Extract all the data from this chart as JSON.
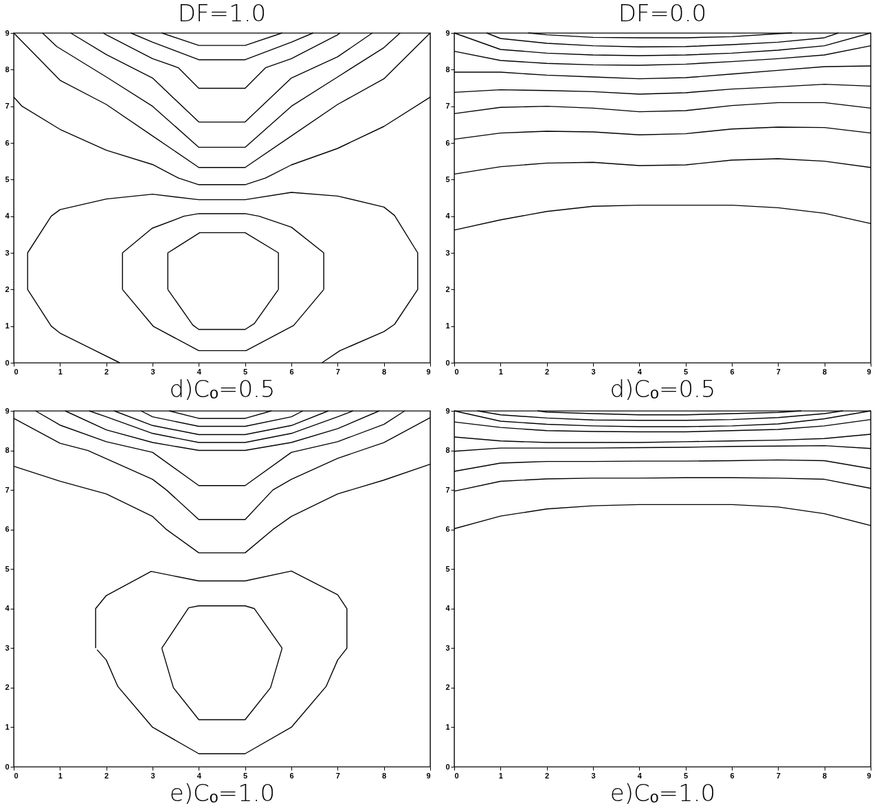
{
  "chart_data": [
    {
      "type": "line",
      "title": "DF=1.0",
      "xlabel": "d)Cₒ=0.5",
      "xlim": [
        0,
        9
      ],
      "ylim": [
        0,
        9
      ],
      "xticks": [
        0,
        1,
        2,
        3,
        4,
        5,
        6,
        7,
        8,
        9
      ],
      "yticks": [
        0,
        1,
        2,
        3,
        4,
        5,
        6,
        7,
        8,
        9
      ],
      "series": [
        {
          "color": "#000000",
          "x": [
            3.2,
            4,
            5,
            5.8
          ],
          "values": [
            9,
            8.66,
            8.66,
            9
          ]
        },
        {
          "color": "#000000",
          "x": [
            2.53,
            3,
            4,
            5,
            6,
            6.47
          ],
          "values": [
            9,
            8.75,
            8.27,
            8.27,
            8.75,
            9
          ]
        },
        {
          "color": "#000000",
          "x": [
            1.93,
            2,
            3,
            3.56,
            4,
            5,
            5.44,
            6,
            7,
            7.05
          ],
          "values": [
            9,
            8.95,
            8.3,
            8.05,
            7.49,
            7.49,
            8.05,
            8.3,
            8.95,
            9
          ]
        },
        {
          "color": "#000000",
          "x": [
            1.23,
            2,
            3,
            4,
            5,
            6,
            7,
            7.75
          ],
          "values": [
            9,
            8.41,
            7.77,
            6.57,
            6.57,
            7.77,
            8.35,
            9
          ]
        },
        {
          "color": "#000000",
          "x": [
            0.62,
            0.93,
            2,
            3,
            4,
            5,
            6,
            7,
            8,
            8.35
          ],
          "values": [
            9,
            8.63,
            7.8,
            7.0,
            5.88,
            5.88,
            7.0,
            7.8,
            8.6,
            9
          ]
        },
        {
          "color": "#000000",
          "x": [
            0,
            1,
            2,
            3,
            4,
            5,
            6,
            7,
            8,
            9
          ],
          "values": [
            9,
            7.71,
            7.05,
            6.19,
            5.33,
            5.33,
            6.19,
            7.05,
            7.75,
            9
          ]
        },
        {
          "color": "#000000",
          "x": [
            0,
            0.18,
            1,
            2,
            3,
            3.56,
            4,
            5,
            5.44,
            6,
            7,
            8,
            9
          ],
          "values": [
            7.25,
            7.0,
            6.37,
            5.8,
            5.41,
            5.04,
            4.86,
            4.86,
            5.04,
            5.4,
            5.85,
            6.45,
            7.25
          ]
        },
        {
          "color": "#000000",
          "x": [
            2.29,
            1.0,
            0.81,
            0.3,
            0.3,
            0.81,
            1.0,
            2,
            3,
            4,
            5,
            6,
            7,
            8,
            8.23,
            8.73,
            8.73,
            8.23,
            8.0,
            7.05,
            6.66
          ],
          "values": [
            0,
            0.81,
            1.0,
            2.0,
            3.0,
            4.0,
            4.18,
            4.47,
            4.6,
            4.45,
            4.45,
            4.65,
            4.55,
            4.25,
            4.02,
            3.0,
            2.0,
            1.05,
            0.85,
            0.33,
            0
          ]
        },
        {
          "color": "#000000",
          "x": [
            2.35,
            2.35,
            2.99,
            3.68,
            4,
            5,
            5.3,
            6,
            6.7,
            6.7
          ],
          "values": [
            2.0,
            3.0,
            3.67,
            4.0,
            4.07,
            4.07,
            4.0,
            3.7,
            3.0,
            2.0
          ]
        },
        {
          "color": "#000000",
          "x": [
            6.7,
            6.05,
            5.02,
            4,
            3.02,
            2.35
          ],
          "values": [
            2.0,
            1.02,
            0.33,
            0.33,
            0.99,
            2.0
          ]
        },
        {
          "color": "#000000",
          "x": [
            3.33,
            3.33,
            4.02,
            5.0,
            5.72,
            5.72
          ],
          "values": [
            2.0,
            3.0,
            3.55,
            3.55,
            3.0,
            2.0
          ]
        },
        {
          "color": "#000000",
          "x": [
            5.72,
            5.2,
            5.0,
            4.0,
            3.87,
            3.33
          ],
          "values": [
            2.0,
            1.07,
            0.91,
            0.91,
            1.03,
            2.0
          ]
        }
      ]
    },
    {
      "type": "line",
      "title": "DF=0.0",
      "xlabel": "d)Cₒ=0.5",
      "xlim": [
        0,
        9
      ],
      "ylim": [
        0,
        9
      ],
      "xticks": [
        0,
        1,
        2,
        3,
        4,
        5,
        6,
        7,
        8,
        9
      ],
      "yticks": [
        0,
        1,
        2,
        3,
        4,
        5,
        6,
        7,
        8,
        9
      ],
      "series": [
        {
          "color": "#000000",
          "x": [
            1.6,
            2,
            3,
            4,
            5,
            6,
            7,
            7.3
          ],
          "values": [
            9,
            8.95,
            8.88,
            8.87,
            8.87,
            8.9,
            8.98,
            9
          ]
        },
        {
          "color": "#000000",
          "x": [
            0.7,
            1,
            2,
            3,
            4,
            5,
            6,
            7,
            8,
            8.3
          ],
          "values": [
            9,
            8.85,
            8.72,
            8.65,
            8.62,
            8.63,
            8.68,
            8.75,
            8.87,
            9
          ]
        },
        {
          "color": "#000000",
          "x": [
            0,
            1,
            2,
            3,
            4,
            5,
            6,
            7,
            8,
            9
          ],
          "values": [
            9,
            8.55,
            8.45,
            8.4,
            8.38,
            8.4,
            8.45,
            8.53,
            8.65,
            9
          ]
        },
        {
          "color": "#000000",
          "x": [
            0,
            1,
            2,
            3,
            4,
            5,
            6,
            7,
            8,
            9
          ],
          "values": [
            8.5,
            8.25,
            8.17,
            8.13,
            8.12,
            8.15,
            8.22,
            8.3,
            8.4,
            8.65
          ]
        },
        {
          "color": "#000000",
          "x": [
            0,
            1,
            2,
            3,
            4,
            5,
            6,
            7,
            8,
            9
          ],
          "values": [
            7.93,
            7.93,
            7.85,
            7.8,
            7.75,
            7.78,
            7.88,
            7.98,
            8.08,
            8.1
          ]
        },
        {
          "color": "#000000",
          "x": [
            0,
            1,
            2,
            3,
            4,
            5,
            6,
            7,
            8,
            9
          ],
          "values": [
            7.38,
            7.45,
            7.43,
            7.4,
            7.33,
            7.37,
            7.47,
            7.53,
            7.6,
            7.55
          ]
        },
        {
          "color": "#000000",
          "x": [
            0,
            1,
            2,
            3,
            4,
            5,
            6,
            7,
            8,
            9
          ],
          "values": [
            6.8,
            6.97,
            7.0,
            6.95,
            6.85,
            6.88,
            7.02,
            7.1,
            7.1,
            6.95
          ]
        },
        {
          "color": "#000000",
          "x": [
            0,
            1,
            2,
            3,
            4,
            5,
            6,
            7,
            8,
            9
          ],
          "values": [
            6.1,
            6.27,
            6.32,
            6.3,
            6.22,
            6.25,
            6.38,
            6.43,
            6.42,
            6.27
          ]
        },
        {
          "color": "#000000",
          "x": [
            0,
            1,
            2,
            3,
            4,
            5,
            6,
            7,
            8,
            9
          ],
          "values": [
            5.15,
            5.35,
            5.45,
            5.47,
            5.38,
            5.4,
            5.53,
            5.57,
            5.5,
            5.33
          ]
        },
        {
          "color": "#000000",
          "x": [
            0,
            1,
            2,
            3,
            4,
            5,
            6,
            7,
            8,
            9
          ],
          "values": [
            3.62,
            3.9,
            4.13,
            4.27,
            4.3,
            4.3,
            4.3,
            4.23,
            4.08,
            3.8
          ]
        }
      ]
    },
    {
      "type": "line",
      "xlabel": "e)Cₒ=1.0",
      "xlim": [
        0,
        9
      ],
      "ylim": [
        0,
        9
      ],
      "xticks": [
        0,
        1,
        2,
        3,
        4,
        5,
        6,
        7,
        8,
        9
      ],
      "yticks": [
        0,
        1,
        2,
        3,
        4,
        5,
        6,
        7,
        8,
        9
      ],
      "series": [
        {
          "color": "#000000",
          "x": [
            3.36,
            4,
            5,
            5.57
          ],
          "values": [
            9,
            8.81,
            8.81,
            9
          ]
        },
        {
          "color": "#000000",
          "x": [
            2.75,
            3,
            4,
            5,
            6,
            6.25
          ],
          "values": [
            9,
            8.85,
            8.61,
            8.61,
            8.85,
            9
          ]
        },
        {
          "color": "#000000",
          "x": [
            2.17,
            3,
            4,
            5,
            6,
            6.8
          ],
          "values": [
            9,
            8.63,
            8.4,
            8.4,
            8.63,
            9
          ]
        },
        {
          "color": "#000000",
          "x": [
            1.63,
            2,
            3,
            4,
            5,
            6,
            7,
            7.33
          ],
          "values": [
            9,
            8.85,
            8.43,
            8.2,
            8.2,
            8.43,
            8.85,
            9
          ]
        },
        {
          "color": "#000000",
          "x": [
            1.11,
            2,
            3,
            4,
            5,
            6,
            7,
            7.9
          ],
          "values": [
            9,
            8.52,
            8.2,
            8.0,
            8.0,
            8.2,
            8.55,
            9
          ]
        },
        {
          "color": "#000000",
          "x": [
            0.47,
            1,
            2,
            3,
            4,
            5,
            6,
            7,
            8,
            8.45
          ],
          "values": [
            9,
            8.64,
            8.22,
            7.95,
            7.11,
            7.11,
            7.95,
            8.22,
            8.66,
            9
          ]
        },
        {
          "color": "#000000",
          "x": [
            0,
            1,
            1.6,
            3,
            3.3,
            4,
            5,
            5.6,
            6,
            7,
            8,
            9
          ],
          "values": [
            8.81,
            8.18,
            8.0,
            7.27,
            7.0,
            6.25,
            6.25,
            7.0,
            7.27,
            7.8,
            8.2,
            8.83
          ]
        },
        {
          "color": "#000000",
          "x": [
            0,
            1,
            2,
            3,
            3.3,
            4,
            5,
            5.6,
            6,
            7,
            8,
            9
          ],
          "values": [
            7.6,
            7.22,
            6.9,
            6.33,
            6.0,
            5.41,
            5.41,
            6.0,
            6.33,
            6.9,
            7.25,
            7.65
          ]
        },
        {
          "color": "#000000",
          "x": [
            1.77,
            1.77,
            2,
            2.97,
            4,
            5,
            6,
            7,
            7.2,
            7.2,
            7,
            6.75,
            6,
            5,
            4,
            3,
            2.25,
            2,
            1.8
          ],
          "values": [
            3.0,
            4.0,
            4.33,
            4.94,
            4.7,
            4.7,
            4.95,
            4.35,
            4.0,
            3.0,
            2.7,
            2.03,
            1.0,
            0.33,
            0.33,
            1.0,
            2.03,
            2.7,
            2.96
          ]
        },
        {
          "color": "#000000",
          "x": [
            3.2,
            3.78,
            4,
            5,
            5.2,
            5.8
          ],
          "values": [
            3.0,
            4.02,
            4.07,
            4.07,
            4.0,
            3.0
          ]
        },
        {
          "color": "#000000",
          "x": [
            5.8,
            5.55,
            5,
            4,
            3.45,
            3.2
          ],
          "values": [
            3.0,
            2.0,
            1.19,
            1.19,
            2.0,
            3.0
          ]
        }
      ]
    },
    {
      "type": "line",
      "xlabel": "e)Cₒ=1.0",
      "xlim": [
        0,
        9
      ],
      "ylim": [
        0,
        9
      ],
      "xticks": [
        0,
        1,
        2,
        3,
        4,
        5,
        6,
        7,
        8,
        9
      ],
      "yticks": [
        0,
        1,
        2,
        3,
        4,
        5,
        6,
        7,
        8,
        9
      ],
      "series": [
        {
          "color": "#000000",
          "x": [
            1.8,
            2,
            3,
            4,
            5,
            6,
            7,
            7.5
          ],
          "values": [
            9,
            8.97,
            8.93,
            8.9,
            8.9,
            8.93,
            8.96,
            9
          ]
        },
        {
          "color": "#000000",
          "x": [
            0.5,
            1,
            2,
            3,
            4,
            5,
            6,
            7,
            8,
            8.4
          ],
          "values": [
            9,
            8.9,
            8.82,
            8.77,
            8.76,
            8.76,
            8.78,
            8.83,
            8.93,
            9
          ]
        },
        {
          "color": "#000000",
          "x": [
            0,
            1,
            2,
            3,
            4,
            5,
            6,
            7,
            8,
            9
          ],
          "values": [
            9,
            8.74,
            8.66,
            8.62,
            8.6,
            8.6,
            8.62,
            8.67,
            8.8,
            9
          ]
        },
        {
          "color": "#000000",
          "x": [
            0,
            1,
            2,
            3,
            4,
            5,
            6,
            7,
            8,
            9
          ],
          "values": [
            8.72,
            8.58,
            8.5,
            8.48,
            8.47,
            8.47,
            8.5,
            8.53,
            8.62,
            8.78
          ]
        },
        {
          "color": "#000000",
          "x": [
            0,
            1,
            2,
            3,
            4,
            5,
            6,
            7,
            8,
            9
          ],
          "values": [
            8.34,
            8.24,
            8.2,
            8.2,
            8.2,
            8.22,
            8.24,
            8.26,
            8.3,
            8.41
          ]
        },
        {
          "color": "#000000",
          "x": [
            0,
            1,
            2,
            3,
            4,
            5,
            6,
            7,
            8,
            9
          ],
          "values": [
            7.98,
            8.06,
            8.06,
            8.06,
            8.07,
            8.08,
            8.1,
            8.11,
            8.12,
            8.05
          ]
        },
        {
          "color": "#000000",
          "x": [
            0,
            1,
            2,
            3,
            4,
            5,
            6,
            7,
            8,
            9
          ],
          "values": [
            7.47,
            7.68,
            7.72,
            7.72,
            7.73,
            7.73,
            7.74,
            7.76,
            7.74,
            7.54
          ]
        },
        {
          "color": "#000000",
          "x": [
            0,
            1,
            2,
            3,
            4,
            5,
            6,
            7,
            8,
            9
          ],
          "values": [
            6.97,
            7.22,
            7.28,
            7.3,
            7.3,
            7.31,
            7.31,
            7.3,
            7.27,
            7.04
          ]
        },
        {
          "color": "#000000",
          "x": [
            0,
            1,
            2,
            3,
            4,
            5,
            6,
            7,
            8,
            9
          ],
          "values": [
            6.02,
            6.34,
            6.52,
            6.6,
            6.63,
            6.63,
            6.63,
            6.57,
            6.4,
            6.1
          ]
        }
      ]
    }
  ]
}
